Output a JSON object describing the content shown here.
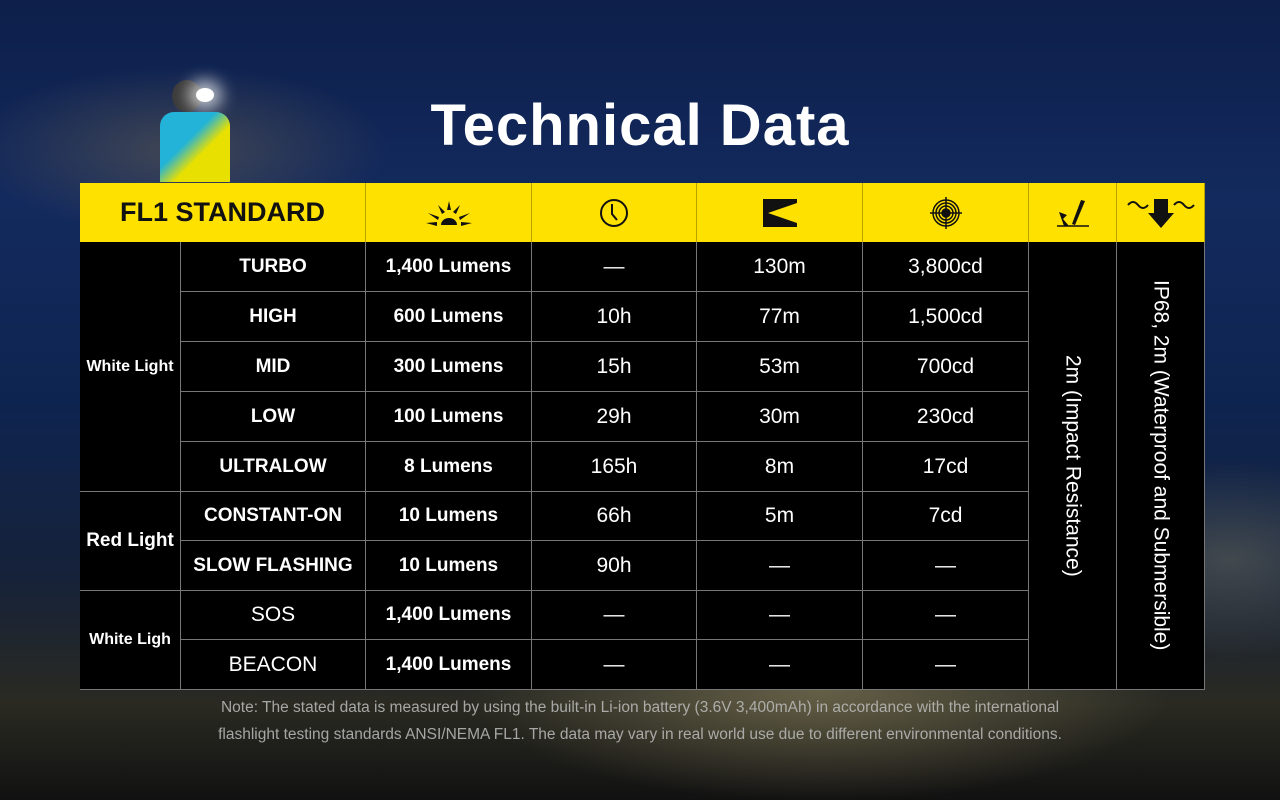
{
  "title": "Technical Data",
  "header": {
    "standard": "FL1 STANDARD",
    "icons": [
      "brightness-icon",
      "runtime-clock-icon",
      "beam-distance-icon",
      "peak-intensity-target-icon",
      "impact-resistance-icon",
      "waterproof-icon"
    ]
  },
  "groups": [
    "White Light",
    "Red Light",
    "White Ligh"
  ],
  "rows": [
    {
      "mode": "TURBO",
      "output": "1,400 Lumens",
      "runtime": "—",
      "distance": "130m",
      "intensity": "3,800cd"
    },
    {
      "mode": "HIGH",
      "output": "600 Lumens",
      "runtime": "10h",
      "distance": "77m",
      "intensity": "1,500cd"
    },
    {
      "mode": "MID",
      "output": "300 Lumens",
      "runtime": "15h",
      "distance": "53m",
      "intensity": "700cd"
    },
    {
      "mode": "LOW",
      "output": "100 Lumens",
      "runtime": "29h",
      "distance": "30m",
      "intensity": "230cd"
    },
    {
      "mode": "ULTRALOW",
      "output": "8 Lumens",
      "runtime": "165h",
      "distance": "8m",
      "intensity": "17cd"
    },
    {
      "mode": "CONSTANT-ON",
      "output": "10 Lumens",
      "runtime": "66h",
      "distance": "5m",
      "intensity": "7cd"
    },
    {
      "mode": "SLOW FLASHING",
      "output": "10 Lumens",
      "runtime": "90h",
      "distance": "—",
      "intensity": "—"
    },
    {
      "mode": "SOS",
      "output": "1,400 Lumens",
      "runtime": "—",
      "distance": "—",
      "intensity": "—"
    },
    {
      "mode": "BEACON",
      "output": "1,400 Lumens",
      "runtime": "—",
      "distance": "—",
      "intensity": "—"
    }
  ],
  "impact": "2m (Impact Resistance)",
  "waterproof": "IP68, 2m (Waterproof and Submersible)",
  "note": {
    "line1": "Note: The stated data is measured by using the built-in Li-ion battery (3.6V 3,400mAh) in accordance with the international",
    "line2": "flashlight testing standards ANSI/NEMA FL1. The data may vary in real world use due to different environmental conditions."
  },
  "colors": {
    "header": "#ffe100",
    "table": "#000000",
    "text": "#ffffff"
  }
}
